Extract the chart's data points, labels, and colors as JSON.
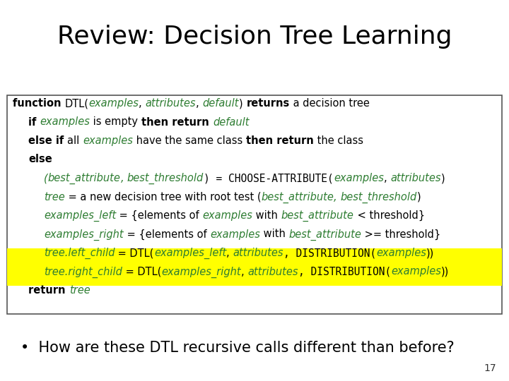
{
  "title": "Review: Decision Tree Learning",
  "title_fontsize": 26,
  "title_color": "#000000",
  "background_color": "#ffffff",
  "box_border_color": "#555555",
  "highlight_color": "#ffff00",
  "bullet_text": "How are these DTL recursive calls different than before?",
  "bullet_fontsize": 15,
  "page_number": "17",
  "green_color": "#2e7d32",
  "lines": [
    {
      "indent": 0,
      "highlight": false,
      "segments": [
        {
          "text": "function ",
          "bold": true,
          "italic": false,
          "color": "#000000",
          "mono": false
        },
        {
          "text": "DTL(",
          "bold": false,
          "italic": false,
          "color": "#000000",
          "mono": false
        },
        {
          "text": "examples",
          "bold": false,
          "italic": true,
          "color": "#2e7d32",
          "mono": false
        },
        {
          "text": ", ",
          "bold": false,
          "italic": false,
          "color": "#000000",
          "mono": false
        },
        {
          "text": "attributes",
          "bold": false,
          "italic": true,
          "color": "#2e7d32",
          "mono": false
        },
        {
          "text": ", ",
          "bold": false,
          "italic": false,
          "color": "#000000",
          "mono": false
        },
        {
          "text": "default",
          "bold": false,
          "italic": true,
          "color": "#2e7d32",
          "mono": false
        },
        {
          "text": ") ",
          "bold": false,
          "italic": false,
          "color": "#000000",
          "mono": false
        },
        {
          "text": "returns",
          "bold": true,
          "italic": false,
          "color": "#000000",
          "mono": false
        },
        {
          "text": " a decision tree",
          "bold": false,
          "italic": false,
          "color": "#000000",
          "mono": false
        }
      ]
    },
    {
      "indent": 1,
      "highlight": false,
      "segments": [
        {
          "text": "if ",
          "bold": true,
          "italic": false,
          "color": "#000000",
          "mono": false
        },
        {
          "text": "examples",
          "bold": false,
          "italic": true,
          "color": "#2e7d32",
          "mono": false
        },
        {
          "text": " is empty ",
          "bold": false,
          "italic": false,
          "color": "#000000",
          "mono": false
        },
        {
          "text": "then return ",
          "bold": true,
          "italic": false,
          "color": "#000000",
          "mono": false
        },
        {
          "text": "default",
          "bold": false,
          "italic": true,
          "color": "#2e7d32",
          "mono": false
        }
      ]
    },
    {
      "indent": 1,
      "highlight": false,
      "segments": [
        {
          "text": "else if ",
          "bold": true,
          "italic": false,
          "color": "#000000",
          "mono": false
        },
        {
          "text": "all ",
          "bold": false,
          "italic": false,
          "color": "#000000",
          "mono": false
        },
        {
          "text": "examples",
          "bold": false,
          "italic": true,
          "color": "#2e7d32",
          "mono": false
        },
        {
          "text": " have the same class ",
          "bold": false,
          "italic": false,
          "color": "#000000",
          "mono": false
        },
        {
          "text": "then return",
          "bold": true,
          "italic": false,
          "color": "#000000",
          "mono": false
        },
        {
          "text": " the class",
          "bold": false,
          "italic": false,
          "color": "#000000",
          "mono": false
        }
      ]
    },
    {
      "indent": 1,
      "highlight": false,
      "segments": [
        {
          "text": "else",
          "bold": true,
          "italic": false,
          "color": "#000000",
          "mono": false
        }
      ]
    },
    {
      "indent": 2,
      "highlight": false,
      "segments": [
        {
          "text": "(",
          "bold": false,
          "italic": true,
          "color": "#2e7d32",
          "mono": false
        },
        {
          "text": "best_attribute",
          "bold": false,
          "italic": true,
          "color": "#2e7d32",
          "mono": false
        },
        {
          "text": ", ",
          "bold": false,
          "italic": true,
          "color": "#2e7d32",
          "mono": false
        },
        {
          "text": "best_threshold",
          "bold": false,
          "italic": true,
          "color": "#2e7d32",
          "mono": false
        },
        {
          "text": ") = CHOOSE-ATTRIBUTE(",
          "bold": false,
          "italic": false,
          "color": "#000000",
          "mono": true
        },
        {
          "text": "examples",
          "bold": false,
          "italic": true,
          "color": "#2e7d32",
          "mono": false
        },
        {
          "text": ", ",
          "bold": false,
          "italic": false,
          "color": "#000000",
          "mono": false
        },
        {
          "text": "attributes",
          "bold": false,
          "italic": true,
          "color": "#2e7d32",
          "mono": false
        },
        {
          "text": ")",
          "bold": false,
          "italic": false,
          "color": "#000000",
          "mono": false
        }
      ]
    },
    {
      "indent": 2,
      "highlight": false,
      "segments": [
        {
          "text": "tree",
          "bold": false,
          "italic": true,
          "color": "#2e7d32",
          "mono": false
        },
        {
          "text": " = a new decision tree with root test (",
          "bold": false,
          "italic": false,
          "color": "#000000",
          "mono": false
        },
        {
          "text": "best_attribute",
          "bold": false,
          "italic": true,
          "color": "#2e7d32",
          "mono": false
        },
        {
          "text": ", ",
          "bold": false,
          "italic": true,
          "color": "#2e7d32",
          "mono": false
        },
        {
          "text": "best_threshold",
          "bold": false,
          "italic": true,
          "color": "#2e7d32",
          "mono": false
        },
        {
          "text": ")",
          "bold": false,
          "italic": false,
          "color": "#000000",
          "mono": false
        }
      ]
    },
    {
      "indent": 2,
      "highlight": false,
      "segments": [
        {
          "text": "examples_left",
          "bold": false,
          "italic": true,
          "color": "#2e7d32",
          "mono": false
        },
        {
          "text": " = {elements of ",
          "bold": false,
          "italic": false,
          "color": "#000000",
          "mono": false
        },
        {
          "text": "examples",
          "bold": false,
          "italic": true,
          "color": "#2e7d32",
          "mono": false
        },
        {
          "text": " with ",
          "bold": false,
          "italic": false,
          "color": "#000000",
          "mono": false
        },
        {
          "text": "best_attribute",
          "bold": false,
          "italic": true,
          "color": "#2e7d32",
          "mono": false
        },
        {
          "text": " < threshold}",
          "bold": false,
          "italic": false,
          "color": "#000000",
          "mono": false
        }
      ]
    },
    {
      "indent": 2,
      "highlight": false,
      "segments": [
        {
          "text": "examples_right",
          "bold": false,
          "italic": true,
          "color": "#2e7d32",
          "mono": false
        },
        {
          "text": " = {elements of ",
          "bold": false,
          "italic": false,
          "color": "#000000",
          "mono": false
        },
        {
          "text": "examples",
          "bold": false,
          "italic": true,
          "color": "#2e7d32",
          "mono": false
        },
        {
          "text": " with ",
          "bold": false,
          "italic": false,
          "color": "#000000",
          "mono": false
        },
        {
          "text": "best_attribute",
          "bold": false,
          "italic": true,
          "color": "#2e7d32",
          "mono": false
        },
        {
          "text": " >= threshold}",
          "bold": false,
          "italic": false,
          "color": "#000000",
          "mono": false
        }
      ]
    },
    {
      "indent": 2,
      "highlight": true,
      "segments": [
        {
          "text": "tree.left_child",
          "bold": false,
          "italic": true,
          "color": "#2e7d32",
          "mono": false
        },
        {
          "text": " = DTL(",
          "bold": false,
          "italic": false,
          "color": "#000000",
          "mono": false
        },
        {
          "text": "examples_left",
          "bold": false,
          "italic": true,
          "color": "#2e7d32",
          "mono": false
        },
        {
          "text": ", ",
          "bold": false,
          "italic": false,
          "color": "#000000",
          "mono": false
        },
        {
          "text": "attributes",
          "bold": false,
          "italic": true,
          "color": "#2e7d32",
          "mono": false
        },
        {
          "text": ", DISTRIBUTION(",
          "bold": false,
          "italic": false,
          "color": "#000000",
          "mono": true
        },
        {
          "text": "examples",
          "bold": false,
          "italic": true,
          "color": "#2e7d32",
          "mono": false
        },
        {
          "text": "))",
          "bold": false,
          "italic": false,
          "color": "#000000",
          "mono": false
        }
      ]
    },
    {
      "indent": 2,
      "highlight": true,
      "segments": [
        {
          "text": "tree.right_child",
          "bold": false,
          "italic": true,
          "color": "#2e7d32",
          "mono": false
        },
        {
          "text": " = DTL(",
          "bold": false,
          "italic": false,
          "color": "#000000",
          "mono": false
        },
        {
          "text": "examples_right",
          "bold": false,
          "italic": true,
          "color": "#2e7d32",
          "mono": false
        },
        {
          "text": ", ",
          "bold": false,
          "italic": false,
          "color": "#000000",
          "mono": false
        },
        {
          "text": "attributes",
          "bold": false,
          "italic": true,
          "color": "#2e7d32",
          "mono": false
        },
        {
          "text": ", DISTRIBUTION(",
          "bold": false,
          "italic": false,
          "color": "#000000",
          "mono": true
        },
        {
          "text": "examples",
          "bold": false,
          "italic": true,
          "color": "#2e7d32",
          "mono": false
        },
        {
          "text": "))",
          "bold": false,
          "italic": false,
          "color": "#000000",
          "mono": false
        }
      ]
    },
    {
      "indent": 1,
      "highlight": false,
      "segments": [
        {
          "text": "return ",
          "bold": true,
          "italic": false,
          "color": "#000000",
          "mono": false
        },
        {
          "text": "tree",
          "bold": false,
          "italic": true,
          "color": "#2e7d32",
          "mono": false
        }
      ]
    }
  ]
}
